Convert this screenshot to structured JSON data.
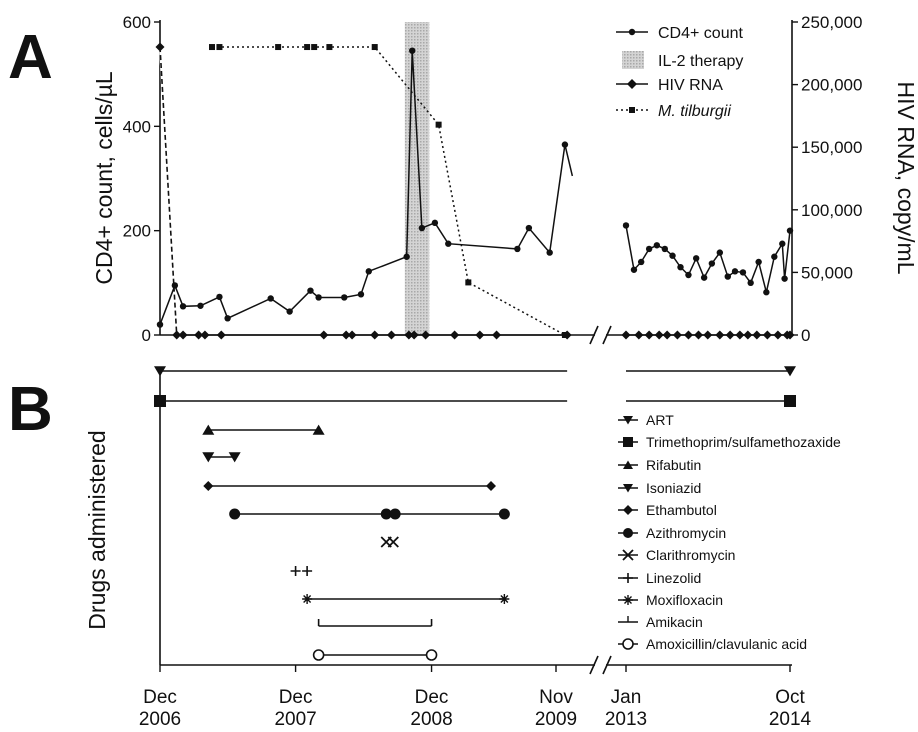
{
  "chart_data": [
    {
      "panel": "A",
      "type": "line",
      "xlabel": "",
      "ylabel_left": "CD4+ count, cells/µL",
      "ylabel_right": "HIV RNA, copy/mL",
      "ylim_left": [
        0,
        600
      ],
      "ylim_right": [
        0,
        250000
      ],
      "yticks_left": [
        "0",
        "200",
        "400",
        "600"
      ],
      "yticks_right": [
        "0",
        "50,000",
        "100,000",
        "150,000",
        "200,000",
        "250,000"
      ],
      "x_tick_labels": [
        {
          "month": "Dec",
          "year": "2006"
        },
        {
          "month": "Dec",
          "year": "2007"
        },
        {
          "month": "Dec",
          "year": "2008"
        },
        {
          "month": "Nov",
          "year": "2009"
        },
        {
          "month": "Jan",
          "year": "2013"
        },
        {
          "month": "Oct",
          "year": "2014"
        }
      ],
      "x_axis_note": "broken axis between Nov 2009 and Jan 2013",
      "legend": [
        {
          "label": "CD4+ count",
          "style": "line-circle"
        },
        {
          "label": "IL-2 therapy",
          "style": "shaded-box"
        },
        {
          "label": "HIV RNA",
          "style": "line-diamond"
        },
        {
          "label": "M. tilburgii",
          "style": "dotted-square"
        }
      ],
      "il2_therapy_span": [
        "2008-09-20",
        "2008-11-25"
      ],
      "series": [
        {
          "name": "CD4+ count",
          "axis": "left",
          "points": [
            [
              "2006-12-01",
              20
            ],
            [
              "2007-01-10",
              95
            ],
            [
              "2007-02-01",
              55
            ],
            [
              "2007-03-20",
              56
            ],
            [
              "2007-05-10",
              73
            ],
            [
              "2007-06-01",
              32
            ],
            [
              "2007-09-25",
              70
            ],
            [
              "2007-11-15",
              45
            ],
            [
              "2008-01-10",
              85
            ],
            [
              "2008-02-01",
              72
            ],
            [
              "2008-04-10",
              72
            ],
            [
              "2008-05-25",
              78
            ],
            [
              "2008-06-15",
              122
            ],
            [
              "2008-09-25",
              150
            ],
            [
              "2008-10-10",
              545
            ],
            [
              "2008-11-05",
              205
            ],
            [
              "2008-12-10",
              215
            ],
            [
              "2009-01-15",
              175
            ],
            [
              "2009-07-20",
              165
            ],
            [
              "2009-08-20",
              205
            ],
            [
              "2009-10-15",
              158
            ],
            [
              "2009-11-25",
              365
            ],
            [
              "2009-12-15",
              305
            ],
            [
              "2013-01-01",
              210
            ],
            [
              "2013-02-01",
              125
            ],
            [
              "2013-03-01",
              140
            ],
            [
              "2013-04-01",
              165
            ],
            [
              "2013-05-01",
              172
            ],
            [
              "2013-06-01",
              165
            ],
            [
              "2013-07-01",
              152
            ],
            [
              "2013-08-01",
              130
            ],
            [
              "2013-09-01",
              115
            ],
            [
              "2013-10-01",
              147
            ],
            [
              "2013-11-01",
              110
            ],
            [
              "2013-12-01",
              137
            ],
            [
              "2014-01-01",
              158
            ],
            [
              "2014-02-01",
              112
            ],
            [
              "2014-03-01",
              122
            ],
            [
              "2014-04-01",
              120
            ],
            [
              "2014-05-01",
              100
            ],
            [
              "2014-06-01",
              140
            ],
            [
              "2014-07-01",
              82
            ],
            [
              "2014-08-01",
              150
            ],
            [
              "2014-09-01",
              175
            ],
            [
              "2014-09-10",
              108
            ],
            [
              "2014-10-01",
              200
            ]
          ]
        },
        {
          "name": "HIV RNA",
          "axis": "right",
          "points": [
            [
              "2006-12-01",
              230000
            ],
            [
              "2007-01-15",
              0
            ],
            [
              "2007-02-01",
              0
            ],
            [
              "2007-03-15",
              0
            ],
            [
              "2007-04-01",
              0
            ],
            [
              "2007-05-15",
              0
            ],
            [
              "2008-02-15",
              0
            ],
            [
              "2008-04-15",
              0
            ],
            [
              "2008-05-01",
              0
            ],
            [
              "2008-07-01",
              0
            ],
            [
              "2008-08-15",
              0
            ],
            [
              "2008-10-01",
              0
            ],
            [
              "2008-10-15",
              0
            ],
            [
              "2008-11-15",
              0
            ],
            [
              "2009-02-01",
              0
            ],
            [
              "2009-04-10",
              0
            ],
            [
              "2009-05-25",
              0
            ],
            [
              "2009-12-01",
              0
            ],
            [
              "2013-01-01",
              0
            ],
            [
              "2013-02-20",
              0
            ],
            [
              "2013-04-01",
              0
            ],
            [
              "2013-05-10",
              0
            ],
            [
              "2013-06-10",
              0
            ],
            [
              "2013-07-20",
              0
            ],
            [
              "2013-09-01",
              0
            ],
            [
              "2013-10-10",
              0
            ],
            [
              "2013-11-15",
              0
            ],
            [
              "2014-01-01",
              0
            ],
            [
              "2014-02-10",
              0
            ],
            [
              "2014-03-20",
              0
            ],
            [
              "2014-04-20",
              0
            ],
            [
              "2014-05-25",
              0
            ],
            [
              "2014-07-05",
              0
            ],
            [
              "2014-08-15",
              0
            ],
            [
              "2014-09-20",
              0
            ],
            [
              "2014-10-01",
              0
            ]
          ]
        },
        {
          "name": "M. tilburgii",
          "axis": "right",
          "points": [
            [
              "2007-04-20",
              230000
            ],
            [
              "2007-05-10",
              230000
            ],
            [
              "2007-10-15",
              230000
            ],
            [
              "2008-01-01",
              230000
            ],
            [
              "2008-01-20",
              230000
            ],
            [
              "2008-03-01",
              230000
            ],
            [
              "2008-07-01",
              230000
            ],
            [
              "2008-12-20",
              168000
            ],
            [
              "2009-03-10",
              42000
            ],
            [
              "2009-11-25",
              0
            ]
          ]
        }
      ]
    },
    {
      "panel": "B",
      "type": "timeline",
      "ylabel": "Drugs administered",
      "drugs": [
        {
          "label": "ART",
          "marker": "triangle-down",
          "lines": [
            [
              "2006-12-01",
              "2009-12-01"
            ],
            [
              "2013-01-01",
              "2014-10-01"
            ]
          ],
          "points": [
            "2006-12-01",
            "2014-10-01"
          ]
        },
        {
          "label": "Trimethoprim/sulfamethozaxide",
          "marker": "square",
          "lines": [
            [
              "2006-12-01",
              "2009-12-01"
            ],
            [
              "2013-01-01",
              "2014-10-01"
            ]
          ],
          "points": [
            "2006-12-01",
            "2014-10-01"
          ]
        },
        {
          "label": "Rifabutin",
          "marker": "triangle-up",
          "lines": [
            [
              "2007-04-10",
              "2008-02-01"
            ]
          ],
          "points": [
            "2007-04-10",
            "2008-02-01"
          ]
        },
        {
          "label": "Isoniazid",
          "marker": "triangle-down",
          "lines": [
            [
              "2007-04-10",
              "2007-06-20"
            ]
          ],
          "points": [
            "2007-04-10",
            "2007-06-20"
          ]
        },
        {
          "label": "Ethambutol",
          "marker": "diamond",
          "lines": [
            [
              "2007-04-10",
              "2009-05-10"
            ]
          ],
          "points": [
            "2007-04-10",
            "2009-05-10"
          ]
        },
        {
          "label": "Azithromycin",
          "marker": "circle",
          "lines": [
            [
              "2007-06-20",
              "2008-08-01"
            ],
            [
              "2008-08-25",
              "2009-06-15"
            ]
          ],
          "points": [
            "2007-06-20",
            "2008-08-01",
            "2008-08-25",
            "2009-06-15"
          ]
        },
        {
          "label": "Clarithromycin",
          "marker": "x",
          "lines": [],
          "points": [
            "2008-08-01",
            "2008-08-20"
          ]
        },
        {
          "label": "Linezolid",
          "marker": "plus",
          "lines": [],
          "points": [
            "2007-12-01",
            "2008-01-01"
          ]
        },
        {
          "label": "Moxifloxacin",
          "marker": "asterisk",
          "lines": [
            [
              "2008-01-01",
              "2009-06-15"
            ]
          ],
          "points": [
            "2008-01-01",
            "2009-06-15"
          ]
        },
        {
          "label": "Amikacin",
          "marker": "tick",
          "lines": [
            [
              "2008-02-01",
              "2008-12-01"
            ]
          ],
          "points": [
            "2008-02-01",
            "2008-12-01"
          ]
        },
        {
          "label": "Amoxicillin/clavulanic acid",
          "marker": "open-circle",
          "lines": [
            [
              "2008-02-01",
              "2008-12-01"
            ]
          ],
          "points": [
            "2008-02-01",
            "2008-12-01"
          ]
        }
      ]
    }
  ],
  "labels": {
    "panel_a": "A",
    "panel_b": "B",
    "legend_italic": "M. tilburgii",
    "axis_break": "//"
  }
}
